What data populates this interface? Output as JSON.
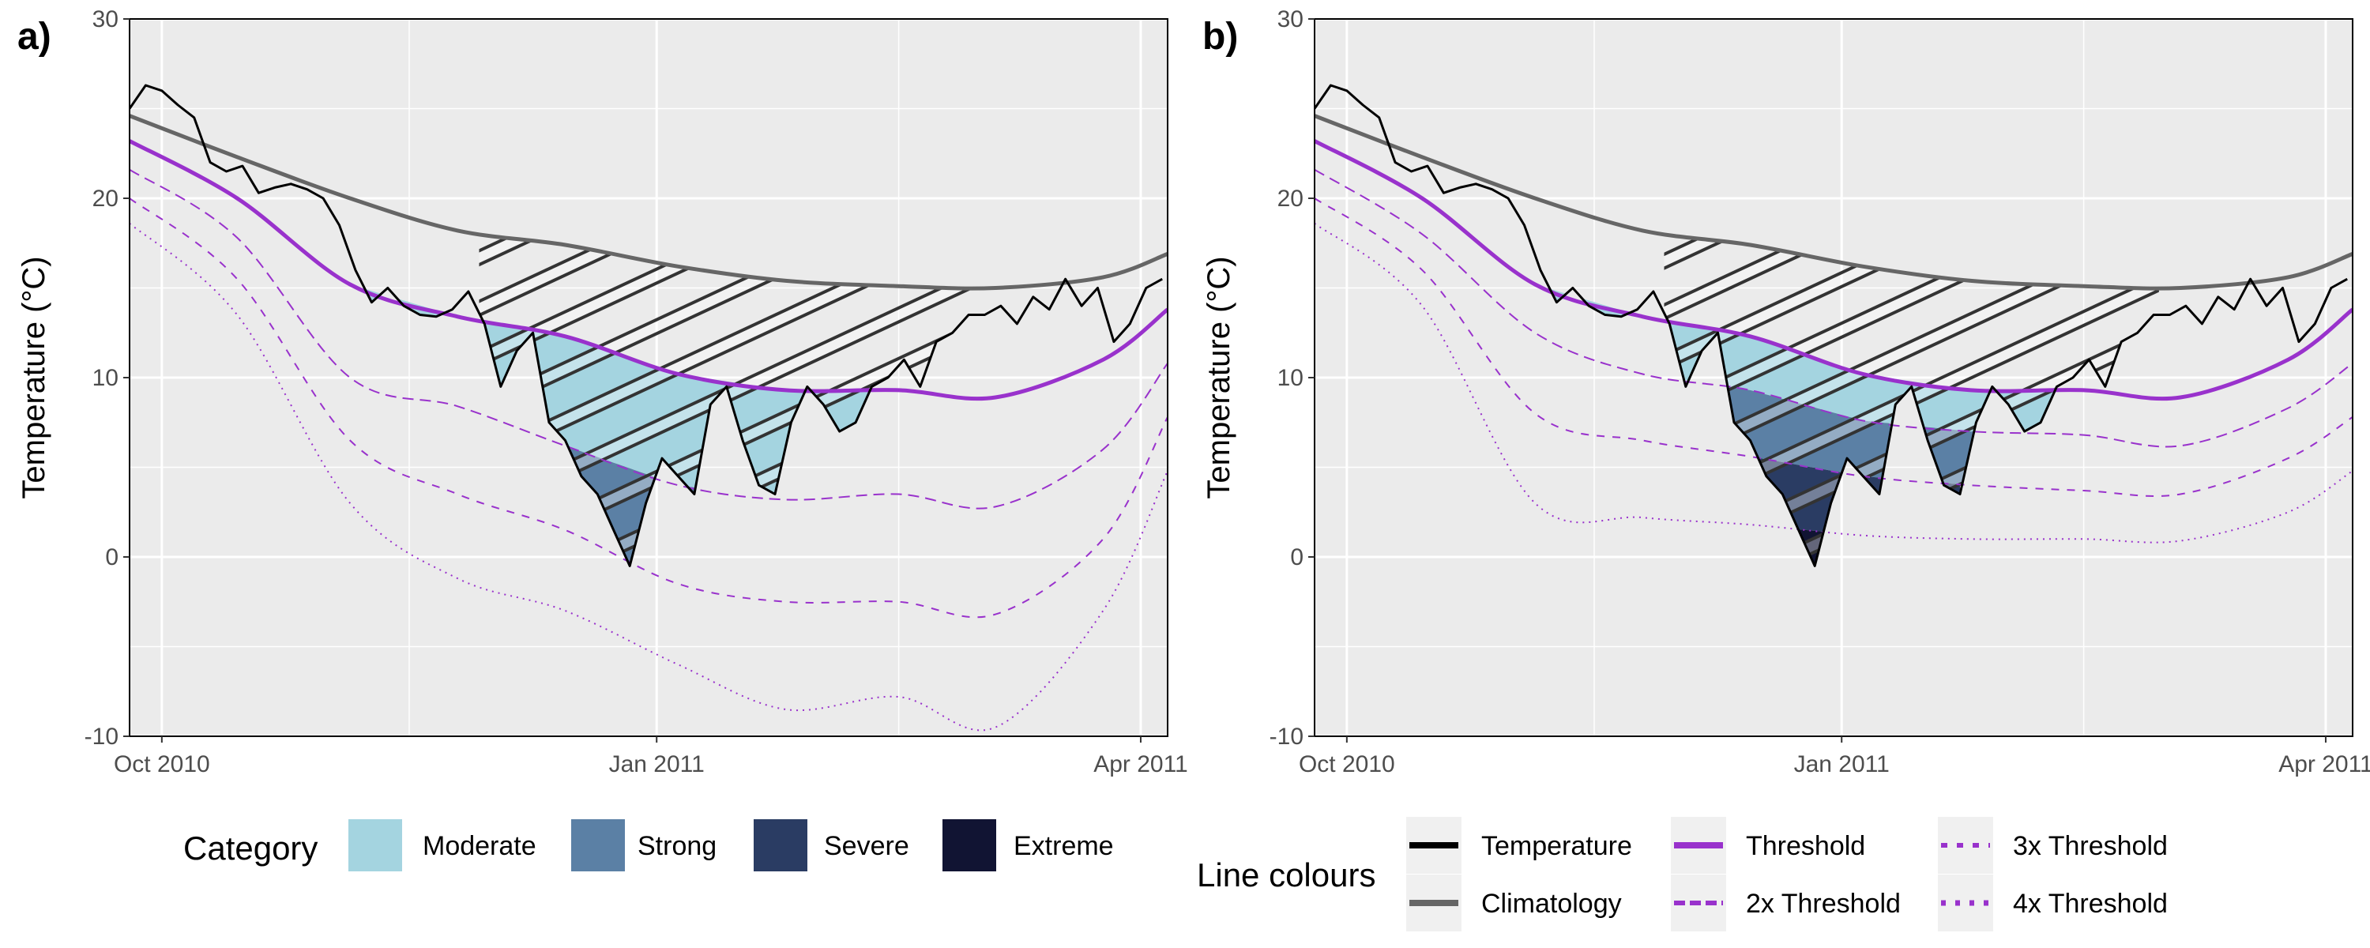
{
  "chart_data": [
    {
      "type": "line",
      "panel_label": "a)",
      "ylabel": "Temperature (°C)",
      "ylim": [
        -10,
        30
      ],
      "yticks": [
        -10,
        0,
        10,
        20,
        30
      ],
      "xlim": [
        "2010-09-25",
        "2011-04-06"
      ],
      "xticks": [
        {
          "date": "2010-10-01",
          "label": "Oct 2010"
        },
        {
          "date": "2011-01-01",
          "label": "Jan 2011"
        },
        {
          "date": "2011-04-01",
          "label": "Apr 2011"
        }
      ],
      "grid": true,
      "highlight_period": [
        "2010-11-29",
        "2011-03-01"
      ],
      "series": [
        {
          "name": "Temperature",
          "color": "#000000",
          "style": "solid",
          "dates": [
            "2010-09-25",
            "2010-09-28",
            "2010-10-01",
            "2010-10-04",
            "2010-10-07",
            "2010-10-10",
            "2010-10-13",
            "2010-10-16",
            "2010-10-19",
            "2010-10-22",
            "2010-10-25",
            "2010-10-28",
            "2010-10-31",
            "2010-11-03",
            "2010-11-06",
            "2010-11-09",
            "2010-11-12",
            "2010-11-15",
            "2010-11-18",
            "2010-11-21",
            "2010-11-24",
            "2010-11-27",
            "2010-11-30",
            "2010-12-03",
            "2010-12-06",
            "2010-12-09",
            "2010-12-12",
            "2010-12-15",
            "2010-12-18",
            "2010-12-21",
            "2010-12-24",
            "2010-12-27",
            "2010-12-30",
            "2011-01-02",
            "2011-01-05",
            "2011-01-08",
            "2011-01-11",
            "2011-01-14",
            "2011-01-17",
            "2011-01-20",
            "2011-01-23",
            "2011-01-26",
            "2011-01-29",
            "2011-02-01",
            "2011-02-04",
            "2011-02-07",
            "2011-02-10",
            "2011-02-13",
            "2011-02-16",
            "2011-02-19",
            "2011-02-22",
            "2011-02-25",
            "2011-02-28",
            "2011-03-03",
            "2011-03-06",
            "2011-03-09",
            "2011-03-12",
            "2011-03-15",
            "2011-03-18",
            "2011-03-21",
            "2011-03-24",
            "2011-03-27",
            "2011-03-30",
            "2011-04-02",
            "2011-04-05"
          ],
          "values": [
            25.0,
            26.3,
            26.0,
            25.2,
            24.5,
            22.0,
            21.5,
            21.8,
            20.3,
            20.6,
            20.8,
            20.5,
            20.0,
            18.5,
            16.0,
            14.2,
            15.0,
            14.0,
            13.5,
            13.4,
            13.8,
            14.8,
            13.0,
            9.5,
            11.5,
            12.5,
            7.5,
            6.5,
            4.5,
            3.5,
            1.5,
            -0.5,
            3.0,
            5.5,
            4.5,
            3.5,
            8.5,
            9.5,
            6.5,
            4.0,
            3.5,
            7.5,
            9.5,
            8.5,
            7.0,
            7.5,
            9.5,
            10.0,
            11.0,
            9.5,
            12.0,
            12.5,
            13.5,
            13.5,
            14.0,
            13.0,
            14.5,
            13.8,
            15.5,
            14.0,
            15.0,
            12.0,
            13.0,
            15.0,
            15.5
          ]
        },
        {
          "name": "Climatology",
          "color": "#666666",
          "style": "solid",
          "dates": [
            "2010-09-25",
            "2010-10-15",
            "2010-11-05",
            "2010-11-25",
            "2010-12-15",
            "2011-01-05",
            "2011-01-25",
            "2011-02-15",
            "2011-03-05",
            "2011-03-25",
            "2011-04-06"
          ],
          "values": [
            24.6,
            22.3,
            20.0,
            18.2,
            17.4,
            16.2,
            15.4,
            15.1,
            15.0,
            15.6,
            16.9
          ]
        },
        {
          "name": "Threshold",
          "color": "#9932CC",
          "style": "solid",
          "dates": [
            "2010-09-25",
            "2010-10-15",
            "2010-11-05",
            "2010-11-25",
            "2010-12-15",
            "2011-01-05",
            "2011-01-25",
            "2011-02-15",
            "2011-03-05",
            "2011-03-25",
            "2011-04-06"
          ],
          "values": [
            23.2,
            20.0,
            15.2,
            13.4,
            12.3,
            10.2,
            9.3,
            9.3,
            8.9,
            11.0,
            13.8
          ]
        },
        {
          "name": "2x Threshold",
          "color": "#9932CC",
          "style": "dashed",
          "dates": [
            "2010-09-25",
            "2010-10-15",
            "2010-11-05",
            "2010-11-25",
            "2010-12-15",
            "2011-01-05",
            "2011-01-25",
            "2011-02-15",
            "2011-03-05",
            "2011-03-25",
            "2011-04-06"
          ],
          "values": [
            21.6,
            17.8,
            10.0,
            8.4,
            6.2,
            4.0,
            3.2,
            3.5,
            2.8,
            6.0,
            10.8
          ]
        },
        {
          "name": "3x Threshold",
          "color": "#9932CC",
          "style": "dashed-fine",
          "dates": [
            "2010-09-25",
            "2010-10-15",
            "2010-11-05",
            "2010-11-25",
            "2010-12-15",
            "2011-01-05",
            "2011-01-25",
            "2011-02-15",
            "2011-03-05",
            "2011-03-25",
            "2011-04-06"
          ],
          "values": [
            20.0,
            15.5,
            6.5,
            3.5,
            1.5,
            -1.5,
            -2.5,
            -2.5,
            -3.2,
            1.0,
            7.8
          ]
        },
        {
          "name": "4x Threshold",
          "color": "#9932CC",
          "style": "dotted",
          "dates": [
            "2010-09-25",
            "2010-10-15",
            "2010-11-05",
            "2010-11-25",
            "2010-12-15",
            "2011-01-05",
            "2011-01-25",
            "2011-02-15",
            "2011-03-05",
            "2011-03-25",
            "2011-04-06"
          ],
          "values": [
            18.6,
            13.5,
            3.0,
            -1.2,
            -3.0,
            -6.0,
            -8.5,
            -7.8,
            -9.5,
            -3.0,
            4.8
          ]
        }
      ]
    },
    {
      "type": "line",
      "panel_label": "b)",
      "ylabel": "Temperature (°C)",
      "ylim": [
        -10,
        30
      ],
      "yticks": [
        -10,
        0,
        10,
        20,
        30
      ],
      "xlim": [
        "2010-09-25",
        "2011-04-06"
      ],
      "xticks": [
        {
          "date": "2010-10-01",
          "label": "Oct 2010"
        },
        {
          "date": "2011-01-01",
          "label": "Jan 2011"
        },
        {
          "date": "2011-04-01",
          "label": "Apr 2011"
        }
      ],
      "grid": true,
      "highlight_period": [
        "2010-11-29",
        "2011-03-01"
      ],
      "series": [
        {
          "name": "Temperature",
          "color": "#000000",
          "style": "solid",
          "dates": [
            "2010-09-25",
            "2010-09-28",
            "2010-10-01",
            "2010-10-04",
            "2010-10-07",
            "2010-10-10",
            "2010-10-13",
            "2010-10-16",
            "2010-10-19",
            "2010-10-22",
            "2010-10-25",
            "2010-10-28",
            "2010-10-31",
            "2010-11-03",
            "2010-11-06",
            "2010-11-09",
            "2010-11-12",
            "2010-11-15",
            "2010-11-18",
            "2010-11-21",
            "2010-11-24",
            "2010-11-27",
            "2010-11-30",
            "2010-12-03",
            "2010-12-06",
            "2010-12-09",
            "2010-12-12",
            "2010-12-15",
            "2010-12-18",
            "2010-12-21",
            "2010-12-24",
            "2010-12-27",
            "2010-12-30",
            "2011-01-02",
            "2011-01-05",
            "2011-01-08",
            "2011-01-11",
            "2011-01-14",
            "2011-01-17",
            "2011-01-20",
            "2011-01-23",
            "2011-01-26",
            "2011-01-29",
            "2011-02-01",
            "2011-02-04",
            "2011-02-07",
            "2011-02-10",
            "2011-02-13",
            "2011-02-16",
            "2011-02-19",
            "2011-02-22",
            "2011-02-25",
            "2011-02-28",
            "2011-03-03",
            "2011-03-06",
            "2011-03-09",
            "2011-03-12",
            "2011-03-15",
            "2011-03-18",
            "2011-03-21",
            "2011-03-24",
            "2011-03-27",
            "2011-03-30",
            "2011-04-02",
            "2011-04-05"
          ],
          "values": [
            25.0,
            26.3,
            26.0,
            25.2,
            24.5,
            22.0,
            21.5,
            21.8,
            20.3,
            20.6,
            20.8,
            20.5,
            20.0,
            18.5,
            16.0,
            14.2,
            15.0,
            14.0,
            13.5,
            13.4,
            13.8,
            14.8,
            13.0,
            9.5,
            11.5,
            12.5,
            7.5,
            6.5,
            4.5,
            3.5,
            1.5,
            -0.5,
            3.0,
            5.5,
            4.5,
            3.5,
            8.5,
            9.5,
            6.5,
            4.0,
            3.5,
            7.5,
            9.5,
            8.5,
            7.0,
            7.5,
            9.5,
            10.0,
            11.0,
            9.5,
            12.0,
            12.5,
            13.5,
            13.5,
            14.0,
            13.0,
            14.5,
            13.8,
            15.5,
            14.0,
            15.0,
            12.0,
            13.0,
            15.0,
            15.5
          ]
        },
        {
          "name": "Climatology",
          "color": "#666666",
          "style": "solid",
          "dates": [
            "2010-09-25",
            "2010-10-15",
            "2010-11-05",
            "2010-11-25",
            "2010-12-15",
            "2011-01-05",
            "2011-01-25",
            "2011-02-15",
            "2011-03-05",
            "2011-03-25",
            "2011-04-06"
          ],
          "values": [
            24.6,
            22.3,
            20.0,
            18.2,
            17.4,
            16.2,
            15.4,
            15.1,
            15.0,
            15.6,
            16.9
          ]
        },
        {
          "name": "Threshold",
          "color": "#9932CC",
          "style": "solid",
          "dates": [
            "2010-09-25",
            "2010-10-15",
            "2010-11-05",
            "2010-11-25",
            "2010-12-15",
            "2011-01-05",
            "2011-01-25",
            "2011-02-15",
            "2011-03-05",
            "2011-03-25",
            "2011-04-06"
          ],
          "values": [
            23.2,
            20.0,
            15.2,
            13.4,
            12.3,
            10.2,
            9.3,
            9.3,
            8.9,
            11.0,
            13.8
          ]
        },
        {
          "name": "2x Threshold",
          "color": "#9932CC",
          "style": "dashed",
          "dates": [
            "2010-09-25",
            "2010-10-15",
            "2010-11-05",
            "2010-11-25",
            "2010-12-15",
            "2011-01-05",
            "2011-01-25",
            "2011-02-15",
            "2011-03-05",
            "2011-03-25",
            "2011-04-06"
          ],
          "values": [
            21.6,
            18.0,
            12.5,
            10.2,
            9.3,
            7.6,
            7.0,
            6.8,
            6.2,
            8.3,
            10.8
          ]
        },
        {
          "name": "3x Threshold",
          "color": "#9932CC",
          "style": "dashed-fine",
          "dates": [
            "2010-09-25",
            "2010-10-15",
            "2010-11-05",
            "2010-11-25",
            "2010-12-15",
            "2011-01-05",
            "2011-01-25",
            "2011-02-15",
            "2011-03-05",
            "2011-03-25",
            "2011-04-06"
          ],
          "values": [
            20.0,
            16.0,
            8.0,
            6.5,
            5.6,
            4.5,
            4.0,
            3.7,
            3.5,
            5.5,
            7.8
          ]
        },
        {
          "name": "4x Threshold",
          "color": "#9932CC",
          "style": "dotted",
          "dates": [
            "2010-09-25",
            "2010-10-15",
            "2010-11-05",
            "2010-11-25",
            "2010-12-15",
            "2011-01-05",
            "2011-01-25",
            "2011-02-15",
            "2011-03-05",
            "2011-03-25",
            "2011-04-06"
          ],
          "values": [
            18.6,
            14.0,
            3.0,
            2.2,
            1.8,
            1.2,
            1.0,
            1.0,
            0.9,
            2.5,
            4.8
          ]
        }
      ]
    }
  ],
  "legend_category": {
    "title": "Category",
    "items": [
      {
        "label": "Moderate",
        "color": "#A4D4E0"
      },
      {
        "label": "Strong",
        "color": "#5B80A5"
      },
      {
        "label": "Severe",
        "color": "#2A3C63"
      },
      {
        "label": "Extreme",
        "color": "#111433"
      }
    ]
  },
  "legend_lines": {
    "title": "Line colours",
    "items": [
      {
        "label": "Temperature",
        "color": "#000000",
        "style": "solid"
      },
      {
        "label": "Climatology",
        "color": "#666666",
        "style": "solid"
      },
      {
        "label": "Threshold",
        "color": "#9932CC",
        "style": "solid"
      },
      {
        "label": "2x Threshold",
        "color": "#9932CC",
        "style": "dashed"
      },
      {
        "label": "3x Threshold",
        "color": "#9932CC",
        "style": "dashed-fine"
      },
      {
        "label": "4x Threshold",
        "color": "#9932CC",
        "style": "dotted"
      }
    ]
  }
}
